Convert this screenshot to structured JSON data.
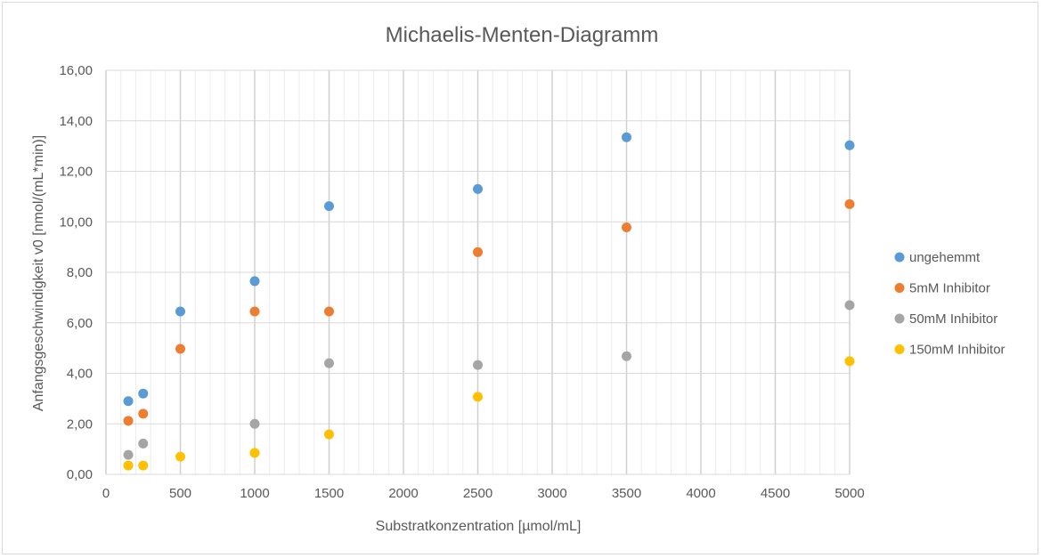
{
  "chart_data": {
    "type": "scatter",
    "title": "Michaelis-Menten-Diagramm",
    "xlabel": "Substratkonzentration [µmol/mL]",
    "ylabel": "Anfangsgeschwindigkeit v0 [nmol/(mL*min)]",
    "xlim": [
      0,
      5000
    ],
    "ylim": [
      0,
      16
    ],
    "xticks": [
      0,
      500,
      1000,
      1500,
      2000,
      2500,
      3000,
      3500,
      4000,
      4500,
      5000
    ],
    "xtick_labels": [
      "0",
      "500",
      "1000",
      "1500",
      "2000",
      "2500",
      "3000",
      "3500",
      "4000",
      "4500",
      "5000"
    ],
    "yticks": [
      0,
      2,
      4,
      6,
      8,
      10,
      12,
      14,
      16
    ],
    "ytick_labels": [
      "0,00",
      "2,00",
      "4,00",
      "6,00",
      "8,00",
      "10,00",
      "12,00",
      "14,00",
      "16,00"
    ],
    "x_minor_step": 100,
    "grid": true,
    "legend_position": "right",
    "series": [
      {
        "name": "ungehemmt",
        "color": "#5b9bd5",
        "points": [
          [
            150,
            2.9
          ],
          [
            250,
            3.2
          ],
          [
            500,
            6.45
          ],
          [
            1000,
            7.65
          ],
          [
            1500,
            10.62
          ],
          [
            2500,
            11.3
          ],
          [
            3500,
            13.35
          ],
          [
            5000,
            13.03
          ]
        ]
      },
      {
        "name": "5mM Inhibitor",
        "color": "#ed7d31",
        "points": [
          [
            150,
            2.12
          ],
          [
            250,
            2.4
          ],
          [
            500,
            4.97
          ],
          [
            1000,
            6.45
          ],
          [
            1500,
            6.45
          ],
          [
            2500,
            8.8
          ],
          [
            3500,
            9.78
          ],
          [
            5000,
            10.7
          ]
        ]
      },
      {
        "name": "50mM Inhibitor",
        "color": "#a5a5a5",
        "points": [
          [
            150,
            0.77
          ],
          [
            250,
            1.22
          ],
          [
            1000,
            2.0
          ],
          [
            1500,
            4.4
          ],
          [
            2500,
            4.33
          ],
          [
            3500,
            4.68
          ],
          [
            5000,
            6.7
          ]
        ]
      },
      {
        "name": "150mM Inhibitor",
        "color": "#ffc000",
        "points": [
          [
            150,
            0.35
          ],
          [
            250,
            0.35
          ],
          [
            500,
            0.7
          ],
          [
            1000,
            0.85
          ],
          [
            1500,
            1.58
          ],
          [
            2500,
            3.07
          ],
          [
            5000,
            4.48
          ]
        ]
      }
    ]
  }
}
